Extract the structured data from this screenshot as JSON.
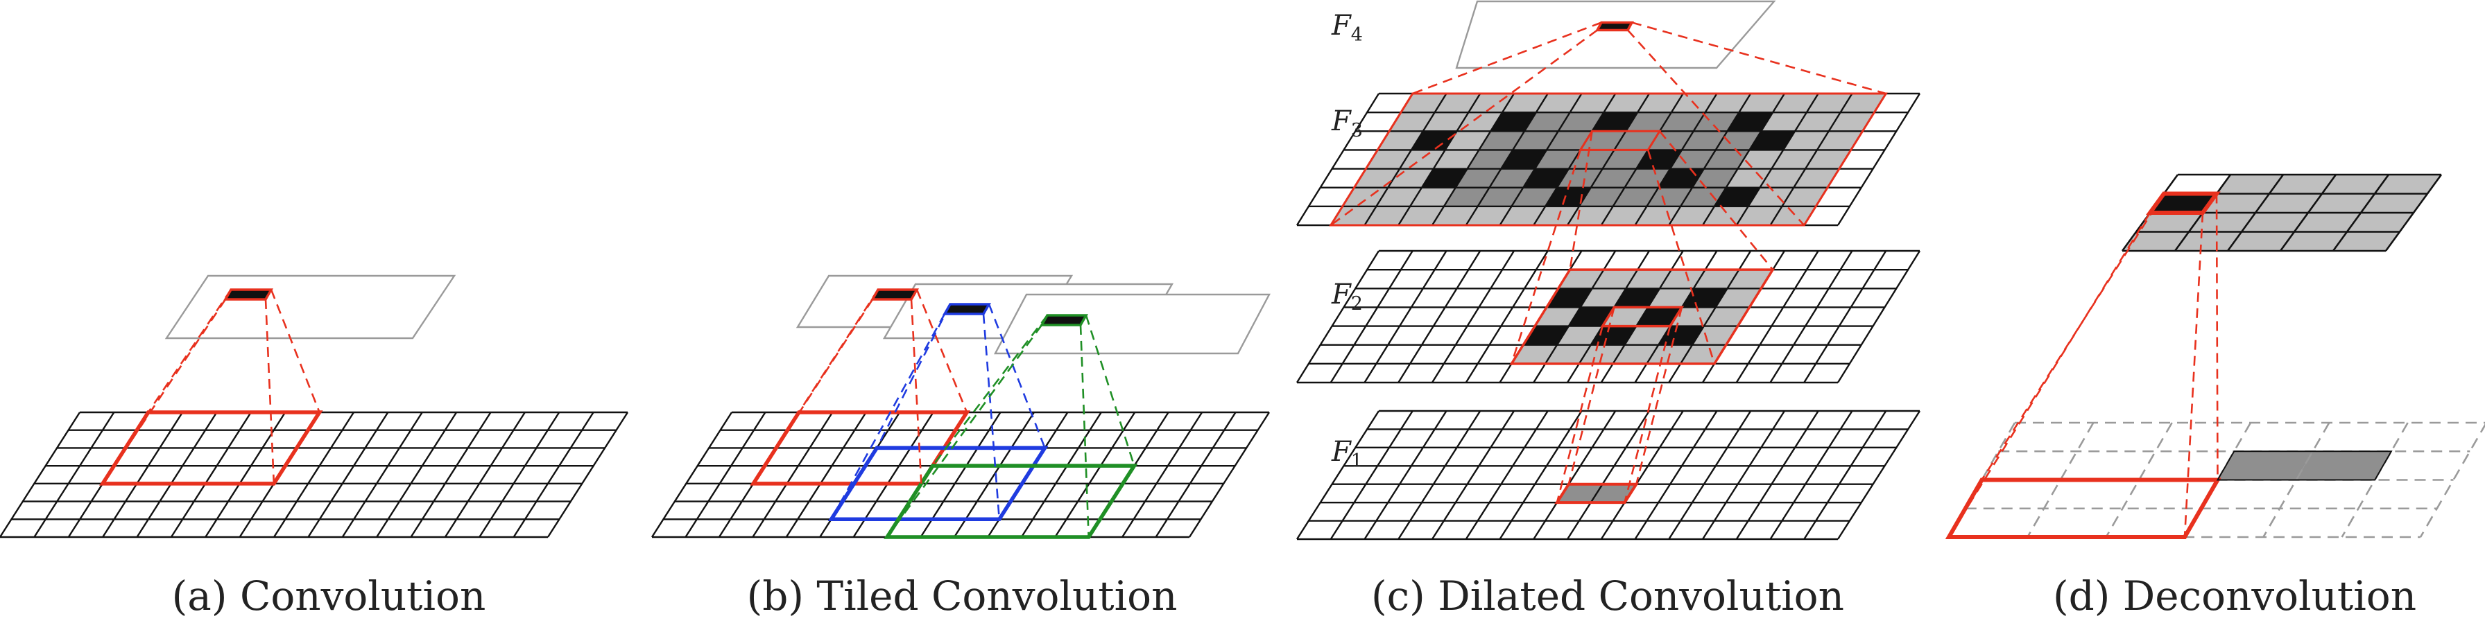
{
  "colors": {
    "line": "#111111",
    "red": "#e8311e",
    "blue": "#1f3be0",
    "green": "#1f8f25",
    "fill_gray": "#bfbfbf",
    "fill_dark_gray": "#8f8f8f",
    "fill_black": "#111111",
    "faint_gray": "#9a9a9a"
  },
  "captions": {
    "a": "(a) Convolution",
    "b": "(b) Tiled Convolution",
    "c": "(c) Dilated Convolution",
    "d": "(d) Deconvolution"
  },
  "labels": {
    "f4": {
      "base": "F",
      "sub": "4"
    },
    "f3": {
      "base": "F",
      "sub": "3"
    },
    "f2": {
      "base": "F",
      "sub": "2"
    },
    "f1": {
      "base": "F",
      "sub": "1"
    }
  }
}
